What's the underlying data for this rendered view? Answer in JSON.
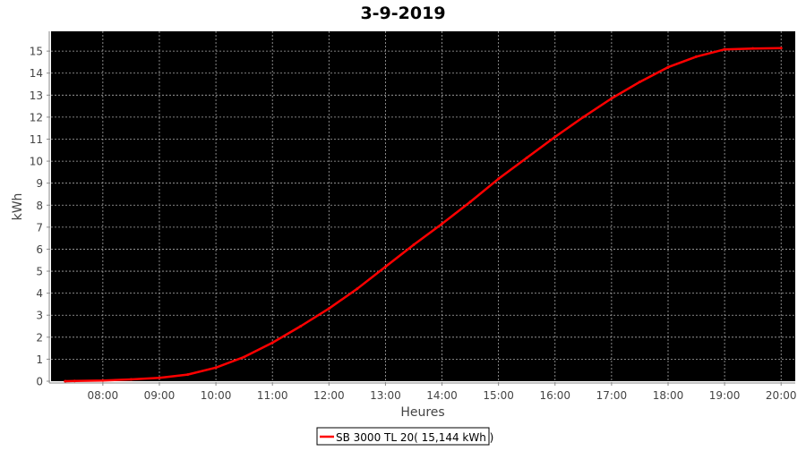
{
  "chart_data": {
    "type": "line",
    "title": "3-9-2019",
    "xlabel": "Heures",
    "ylabel": "kWh",
    "xlim": [
      "07:05",
      "20:15"
    ],
    "ylim": [
      0,
      15.9
    ],
    "x_ticks": [
      "08:00",
      "09:00",
      "10:00",
      "11:00",
      "12:00",
      "13:00",
      "14:00",
      "15:00",
      "16:00",
      "17:00",
      "18:00",
      "19:00",
      "20:00"
    ],
    "y_ticks": [
      0,
      1,
      2,
      3,
      4,
      5,
      6,
      7,
      8,
      9,
      10,
      11,
      12,
      13,
      14,
      15
    ],
    "grid": true,
    "legend_position": "bottom",
    "plot_background": "#000000",
    "series": [
      {
        "name": "SB 3000 TL 20( 15,144 kWh )",
        "color": "#ff0000",
        "x": [
          "07:20",
          "07:30",
          "08:00",
          "08:30",
          "09:00",
          "09:30",
          "10:00",
          "10:30",
          "11:00",
          "11:30",
          "12:00",
          "12:30",
          "13:00",
          "13:30",
          "14:00",
          "14:30",
          "15:00",
          "15:30",
          "16:00",
          "16:30",
          "17:00",
          "17:30",
          "18:00",
          "18:30",
          "19:00",
          "19:30",
          "20:00"
        ],
        "y": [
          0.0,
          0.01,
          0.03,
          0.08,
          0.15,
          0.3,
          0.62,
          1.1,
          1.75,
          2.5,
          3.3,
          4.2,
          5.2,
          6.2,
          7.15,
          8.15,
          9.2,
          10.15,
          11.1,
          12.0,
          12.85,
          13.6,
          14.27,
          14.75,
          15.08,
          15.12,
          15.14
        ]
      }
    ]
  }
}
